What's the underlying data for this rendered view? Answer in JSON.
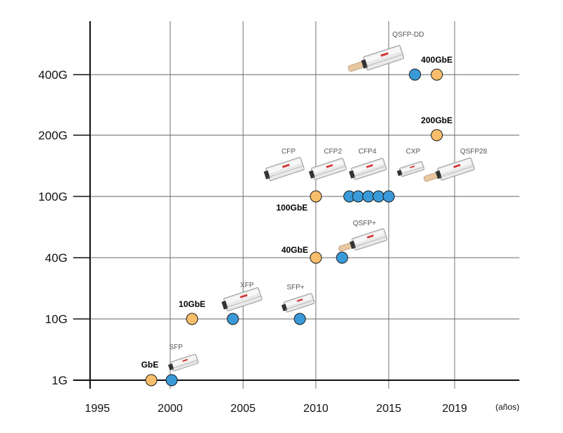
{
  "chart_data": {
    "type": "scatter",
    "title": "",
    "xlabel": "(años)",
    "ylabel": "",
    "x_ticks": [
      "1995",
      "2000",
      "2005",
      "2010",
      "2015",
      "2019"
    ],
    "y_ticks": [
      "1G",
      "10G",
      "40G",
      "100G",
      "200G",
      "400G"
    ],
    "xlim": [
      1994.5,
      2024
    ],
    "grid": true,
    "legend": "none",
    "colors": {
      "standard": "#F9BE6B",
      "form_factor": "#3A9AD9",
      "outline": "#1a1a1a",
      "grid": "#666666"
    },
    "series": [
      {
        "kind": "standard",
        "points": [
          {
            "x": 1998.7,
            "y": "1G",
            "label": "GbE"
          },
          {
            "x": 2001.5,
            "y": "10G",
            "label": "10GbE"
          },
          {
            "x": 2010.0,
            "y": "40G",
            "label": "40GbE"
          },
          {
            "x": 2010.0,
            "y": "100G",
            "label": "100GbE"
          },
          {
            "x": 2018.3,
            "y": "200G",
            "label": "200GbE"
          },
          {
            "x": 2018.3,
            "y": "400G",
            "label": "400GbE"
          }
        ]
      },
      {
        "kind": "form_factor",
        "points": [
          {
            "x": 2000.1,
            "y": "1G",
            "label": "SFP"
          },
          {
            "x": 2004.3,
            "y": "10G",
            "label": "XFP"
          },
          {
            "x": 2008.9,
            "y": "10G",
            "label": "SFP+"
          },
          {
            "x": 2011.8,
            "y": "40G",
            "label": "QSFP+"
          },
          {
            "x": 2012.3,
            "y": "100G",
            "label": ""
          },
          {
            "x": 2012.9,
            "y": "100G",
            "label": ""
          },
          {
            "x": 2013.6,
            "y": "100G",
            "label": ""
          },
          {
            "x": 2014.3,
            "y": "100G",
            "label": ""
          },
          {
            "x": 2015.0,
            "y": "100G",
            "label": ""
          },
          {
            "x": 2016.8,
            "y": "400G",
            "label": ""
          }
        ]
      }
    ],
    "form_factor_labels": [
      "QSFP-DD",
      "CFP",
      "CFP2",
      "CFP4",
      "CXP",
      "QSFP28",
      "QSFP+",
      "XFP",
      "SFP+",
      "SFP"
    ]
  }
}
